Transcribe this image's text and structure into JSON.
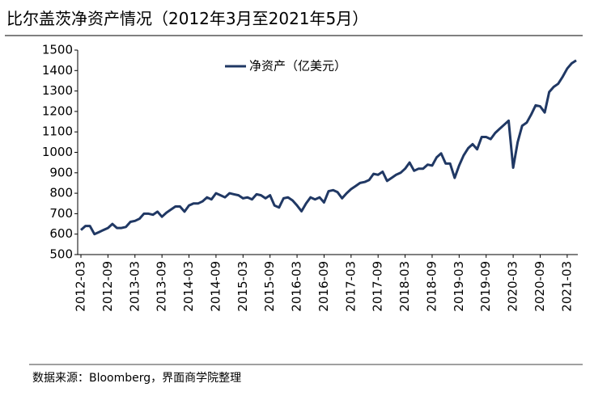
{
  "chart_data": {
    "type": "line",
    "title": "比尔盖茨净资产情况（2012年3月至2021年5月）",
    "source": "数据来源：Bloomberg，界面商学院整理",
    "categories": [
      "2012-03",
      null,
      null,
      null,
      null,
      null,
      "2012-09",
      null,
      null,
      null,
      null,
      null,
      "2013-03",
      null,
      null,
      null,
      null,
      null,
      "2013-09",
      null,
      null,
      null,
      null,
      null,
      "2014-03",
      null,
      null,
      null,
      null,
      null,
      "2014-09",
      null,
      null,
      null,
      null,
      null,
      "2015-03",
      null,
      null,
      null,
      null,
      null,
      "2015-09",
      null,
      null,
      null,
      null,
      null,
      "2016-03",
      null,
      null,
      null,
      null,
      null,
      "2016-09",
      null,
      null,
      null,
      null,
      null,
      "2017-03",
      null,
      null,
      null,
      null,
      null,
      "2017-09",
      null,
      null,
      null,
      null,
      null,
      "2018-03",
      null,
      null,
      null,
      null,
      null,
      "2018-09",
      null,
      null,
      null,
      null,
      null,
      "2019-03",
      null,
      null,
      null,
      null,
      null,
      "2019-09",
      null,
      null,
      null,
      null,
      null,
      "2020-03",
      null,
      null,
      null,
      null,
      null,
      "2020-09",
      null,
      null,
      null,
      null,
      null,
      "2021-03",
      null,
      null
    ],
    "series": [
      {
        "name": "净资产（亿美元）",
        "color": "#203864",
        "values": [
          620,
          640,
          640,
          600,
          610,
          620,
          630,
          650,
          630,
          630,
          635,
          660,
          665,
          675,
          700,
          700,
          695,
          710,
          685,
          705,
          720,
          735,
          735,
          710,
          740,
          750,
          750,
          760,
          780,
          770,
          800,
          790,
          780,
          800,
          795,
          790,
          775,
          780,
          770,
          795,
          790,
          775,
          790,
          740,
          730,
          775,
          780,
          765,
          740,
          712,
          750,
          780,
          770,
          780,
          755,
          810,
          815,
          805,
          775,
          800,
          820,
          835,
          850,
          855,
          865,
          895,
          890,
          905,
          860,
          875,
          890,
          900,
          920,
          950,
          910,
          920,
          920,
          940,
          935,
          975,
          995,
          945,
          945,
          875,
          935,
          985,
          1020,
          1040,
          1015,
          1075,
          1075,
          1065,
          1095,
          1115,
          1135,
          1155,
          925,
          1050,
          1130,
          1145,
          1185,
          1230,
          1225,
          1195,
          1295,
          1320,
          1335,
          1370,
          1410,
          1435,
          1450
        ]
      }
    ],
    "ylim": [
      500,
      1500
    ],
    "yticks": [
      500,
      600,
      700,
      800,
      900,
      1000,
      1100,
      1200,
      1300,
      1400,
      1500
    ],
    "legend": "top"
  }
}
